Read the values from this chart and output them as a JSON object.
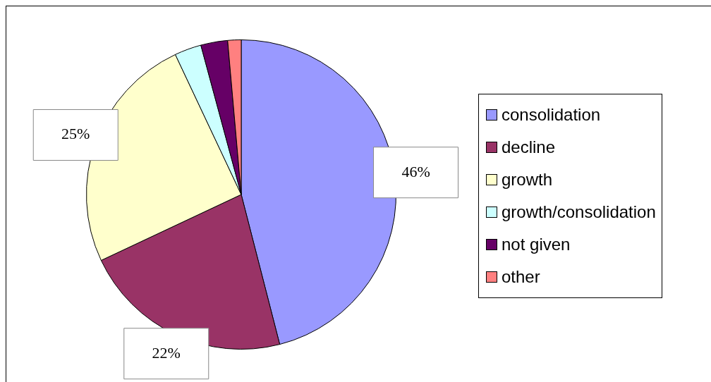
{
  "chart_data": {
    "type": "pie",
    "categories": [
      "consolidation",
      "decline",
      "growth",
      "growth/consolidation",
      "not given",
      "other"
    ],
    "values": [
      46,
      22,
      25,
      2.8,
      2.8,
      1.4
    ],
    "colors": [
      "#9999ff",
      "#993366",
      "#ffffcc",
      "#ccffff",
      "#660066",
      "#ff8080"
    ],
    "value_labels": [
      "46%",
      "22%",
      "25%",
      null,
      null,
      null
    ],
    "legend": "right"
  }
}
